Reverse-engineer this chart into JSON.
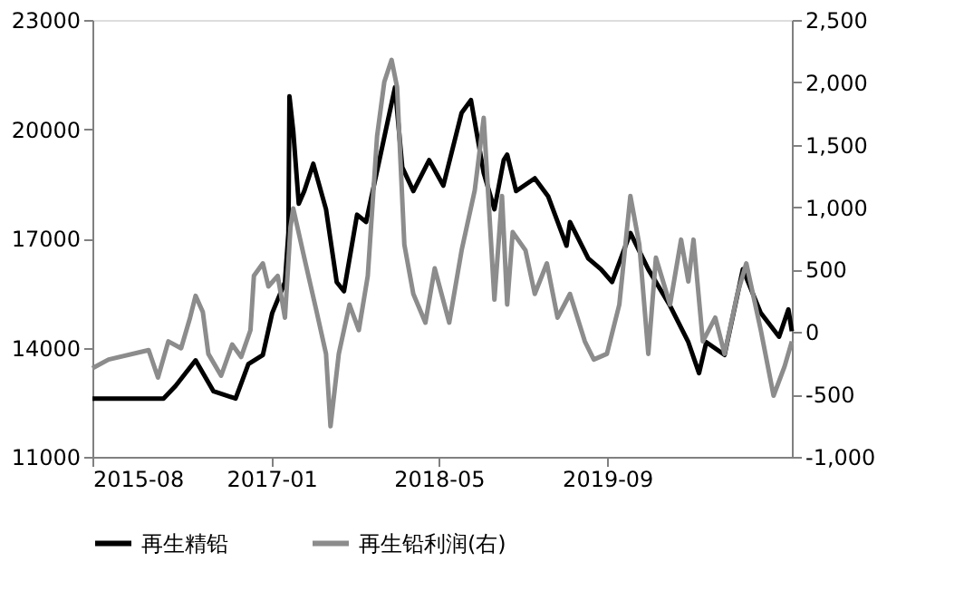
{
  "chart_data": {
    "type": "line",
    "legend": "bottom",
    "grid": false,
    "line_style": "solid",
    "marker": "none",
    "xlim": [
      "2015-08-01",
      "2021-02-17"
    ],
    "xticks": [
      "2015-08",
      "2017-01",
      "2018-05",
      "2019-09"
    ],
    "ylim": [
      11000,
      23000
    ],
    "yticks": [
      11000,
      14000,
      17000,
      20000,
      23000
    ],
    "y2lim": [
      -1000,
      2500
    ],
    "y2ticks": [
      {
        "value": -1000,
        "label": "-1,000"
      },
      {
        "value": -500,
        "label": "-500"
      },
      {
        "value": 0,
        "label": "0"
      },
      {
        "value": 500,
        "label": "500"
      },
      {
        "value": 1000,
        "label": "1,000"
      },
      {
        "value": 1500,
        "label": "1,500"
      },
      {
        "value": 2000,
        "label": "2,000"
      },
      {
        "value": 2500,
        "label": "2,500"
      }
    ],
    "series": [
      {
        "name": "再生精铅",
        "color": "#000000",
        "x": [
          "2015-08-01",
          "2016-02-23",
          "2016-03-29",
          "2016-05-26",
          "2016-07-17",
          "2016-09-19",
          "2016-10-26",
          "2016-12-07",
          "2017-01-03",
          "2017-02-09",
          "2017-02-19",
          "2017-02-22",
          "2017-03-05",
          "2017-03-21",
          "2017-04-06",
          "2017-05-02",
          "2017-06-08",
          "2017-07-09",
          "2017-07-30",
          "2017-09-06",
          "2017-10-02",
          "2017-11-13",
          "2017-12-09",
          "2017-12-25",
          "2018-01-15",
          "2018-02-16",
          "2018-04-03",
          "2018-05-14",
          "2018-07-06",
          "2018-08-02",
          "2018-09-08",
          "2018-10-09",
          "2018-11-05",
          "2018-11-15",
          "2018-12-11",
          "2019-02-03",
          "2019-03-14",
          "2019-05-06",
          "2019-05-16",
          "2019-07-08",
          "2019-08-14",
          "2019-09-15",
          "2019-11-07",
          "2019-12-29",
          "2020-03-01",
          "2020-04-23",
          "2020-05-24",
          "2020-06-14",
          "2020-08-06",
          "2020-09-28",
          "2020-11-19",
          "2021-01-11",
          "2021-02-07",
          "2021-02-17"
        ],
        "values": [
          12600,
          12600,
          12950,
          13650,
          12800,
          12600,
          13550,
          13800,
          14950,
          15800,
          17150,
          20900,
          19950,
          17950,
          18300,
          19050,
          17800,
          15800,
          15550,
          17650,
          17450,
          19300,
          20450,
          21150,
          18950,
          18300,
          19150,
          18450,
          20450,
          20800,
          18800,
          17800,
          19150,
          19300,
          18300,
          18650,
          18150,
          16800,
          17450,
          16450,
          16150,
          15800,
          17150,
          16150,
          15150,
          14150,
          13300,
          14150,
          13800,
          16150,
          14950,
          14300,
          15050,
          14450
        ]
      },
      {
        "name": "再生铅利润(右)",
        "color": "#8c8c8c",
        "axis": "y2",
        "x": [
          "2015-08-01",
          "2015-09-17",
          "2016-01-11",
          "2016-02-07",
          "2016-03-08",
          "2016-04-14",
          "2016-05-10",
          "2016-05-26",
          "2016-06-16",
          "2016-07-02",
          "2016-08-08",
          "2016-09-09",
          "2016-10-05",
          "2016-11-01",
          "2016-11-11",
          "2016-12-07",
          "2016-12-23",
          "2017-01-19",
          "2017-02-09",
          "2017-02-25",
          "2017-03-05",
          "2017-04-06",
          "2017-05-12",
          "2017-06-08",
          "2017-06-21",
          "2017-07-15",
          "2017-08-15",
          "2017-09-11",
          "2017-10-07",
          "2017-11-03",
          "2017-11-24",
          "2017-12-15",
          "2017-12-31",
          "2018-01-21",
          "2018-02-16",
          "2018-03-23",
          "2018-04-19",
          "2018-05-31",
          "2018-07-06",
          "2018-08-13",
          "2018-09-08",
          "2018-10-09",
          "2018-10-31",
          "2018-11-15",
          "2018-12-01",
          "2019-01-07",
          "2019-02-03",
          "2019-03-10",
          "2019-04-10",
          "2019-05-16",
          "2019-06-28",
          "2019-07-24",
          "2019-08-31",
          "2019-10-06",
          "2019-11-07",
          "2019-12-03",
          "2019-12-29",
          "2020-01-20",
          "2020-03-01",
          "2020-04-02",
          "2020-04-23",
          "2020-05-08",
          "2020-06-04",
          "2020-07-10",
          "2020-08-06",
          "2020-09-12",
          "2020-10-08",
          "2020-11-19",
          "2020-12-26",
          "2021-01-27",
          "2021-02-17"
        ],
        "values": [
          -290,
          -220,
          -145,
          -365,
          -75,
          -130,
          115,
          290,
          160,
          -175,
          -350,
          -100,
          -200,
          15,
          450,
          550,
          365,
          450,
          115,
          840,
          990,
          595,
          160,
          -175,
          -755,
          -175,
          220,
          15,
          450,
          1570,
          2005,
          2180,
          1960,
          700,
          305,
          75,
          510,
          75,
          655,
          1135,
          1715,
          260,
          1090,
          220,
          800,
          655,
          305,
          550,
          115,
          305,
          -75,
          -220,
          -175,
          220,
          1090,
          700,
          -175,
          595,
          220,
          740,
          405,
          740,
          -75,
          115,
          -175,
          305,
          550,
          15,
          -510,
          -275,
          -75
        ]
      }
    ]
  }
}
